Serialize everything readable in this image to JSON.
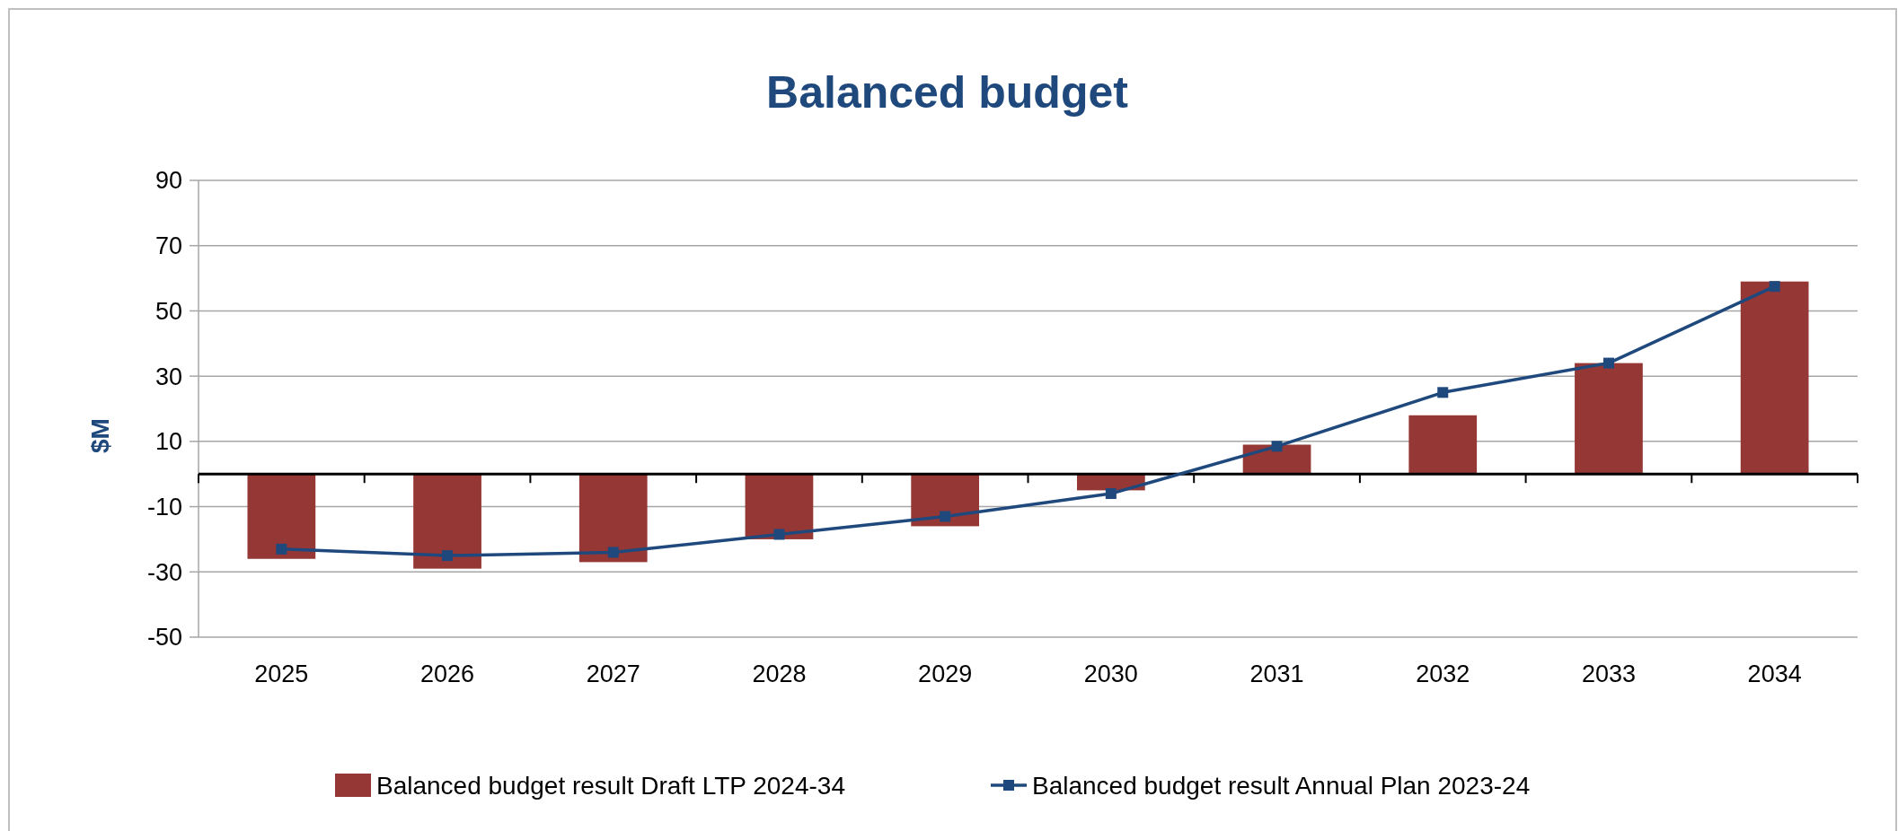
{
  "chart_data": {
    "type": "bar",
    "title": "Balanced budget",
    "ylabel": "$M",
    "categories": [
      "2025",
      "2026",
      "2027",
      "2028",
      "2029",
      "2030",
      "2031",
      "2032",
      "2033",
      "2034"
    ],
    "series": [
      {
        "name": "Balanced budget result Draft LTP 2024-34",
        "color": "#953735",
        "values": [
          -26,
          -29,
          -27,
          -20,
          -16,
          -5,
          9,
          18,
          34,
          59
        ]
      },
      {
        "name": "Balanced budget result Annual Plan 2023-24",
        "type": "line",
        "color": "#1f497d",
        "marker": "square",
        "values": [
          -23,
          -25,
          -24,
          -18.5,
          -13,
          -6,
          8.5,
          25,
          34,
          57.5
        ]
      }
    ],
    "ylim": [
      -50,
      90
    ],
    "yticks": [
      -50,
      -30,
      -10,
      10,
      30,
      50,
      70,
      90
    ],
    "grid": "y",
    "legend": "bottom"
  }
}
